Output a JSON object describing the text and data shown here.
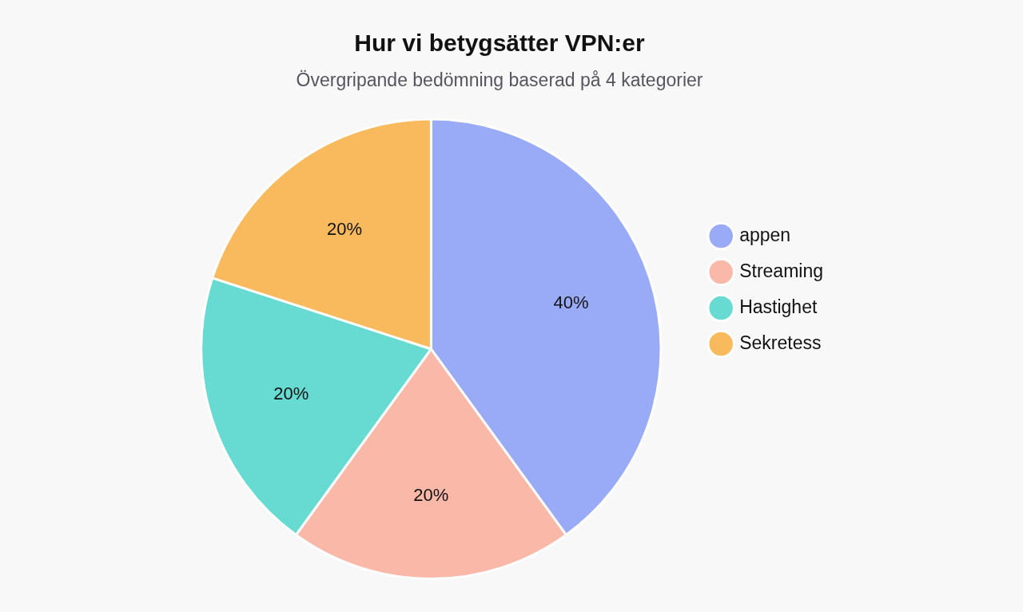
{
  "chart_data": {
    "type": "pie",
    "title": "Hur vi betygsätter VPN:er",
    "subtitle": "Övergripande bedömning baserad på 4 kategorier",
    "categories": [
      "appen",
      "Streaming",
      "Hastighet",
      "Sekretess"
    ],
    "values": [
      40,
      20,
      20,
      20
    ],
    "colors": [
      "#99aaf7",
      "#f9b8a8",
      "#67dad2",
      "#f9ba5e"
    ],
    "value_labels": [
      "40%",
      "20%",
      "20%",
      "20%"
    ],
    "legend": "right"
  }
}
